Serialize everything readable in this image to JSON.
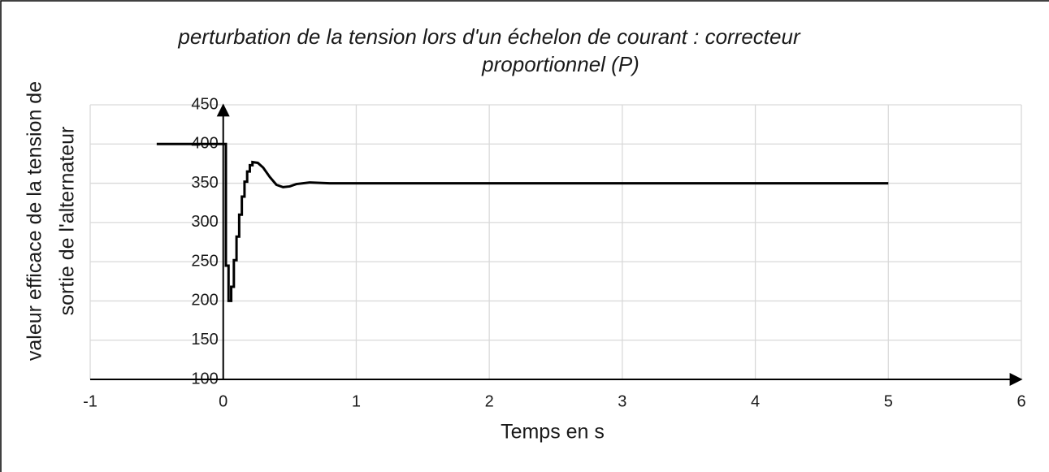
{
  "chart_data": {
    "type": "line",
    "title": [
      "perturbation de la tension lors d'un échelon de courant : correcteur",
      "proportionnel (P)"
    ],
    "x_label": "Temps en s",
    "y_label": [
      "valeur efficace de la tension de",
      "sortie de l'alternateur"
    ],
    "x": [
      -0.5,
      0.02,
      0.02,
      0.04,
      0.04,
      0.06,
      0.06,
      0.08,
      0.08,
      0.1,
      0.1,
      0.12,
      0.12,
      0.14,
      0.14,
      0.16,
      0.16,
      0.18,
      0.18,
      0.2,
      0.2,
      0.22,
      0.22,
      0.26,
      0.3,
      0.35,
      0.4,
      0.45,
      0.5,
      0.55,
      0.65,
      0.8,
      1,
      5
    ],
    "series": [
      {
        "color": "#000000",
        "values": [
          400,
          400,
          245,
          245,
          200,
          200,
          218,
          218,
          252,
          252,
          282,
          282,
          310,
          310,
          333,
          333,
          352,
          352,
          365,
          365,
          373,
          373,
          377,
          376,
          370,
          358,
          348,
          345,
          346,
          349,
          351,
          350,
          350,
          350
        ]
      }
    ],
    "xlim": [
      -1,
      6
    ],
    "xticks": [
      -1,
      0,
      1,
      2,
      3,
      4,
      5,
      6
    ],
    "ylim": [
      100,
      450
    ],
    "yticks": [
      100,
      150,
      200,
      250,
      300,
      350,
      400,
      450
    ],
    "grid": true
  }
}
